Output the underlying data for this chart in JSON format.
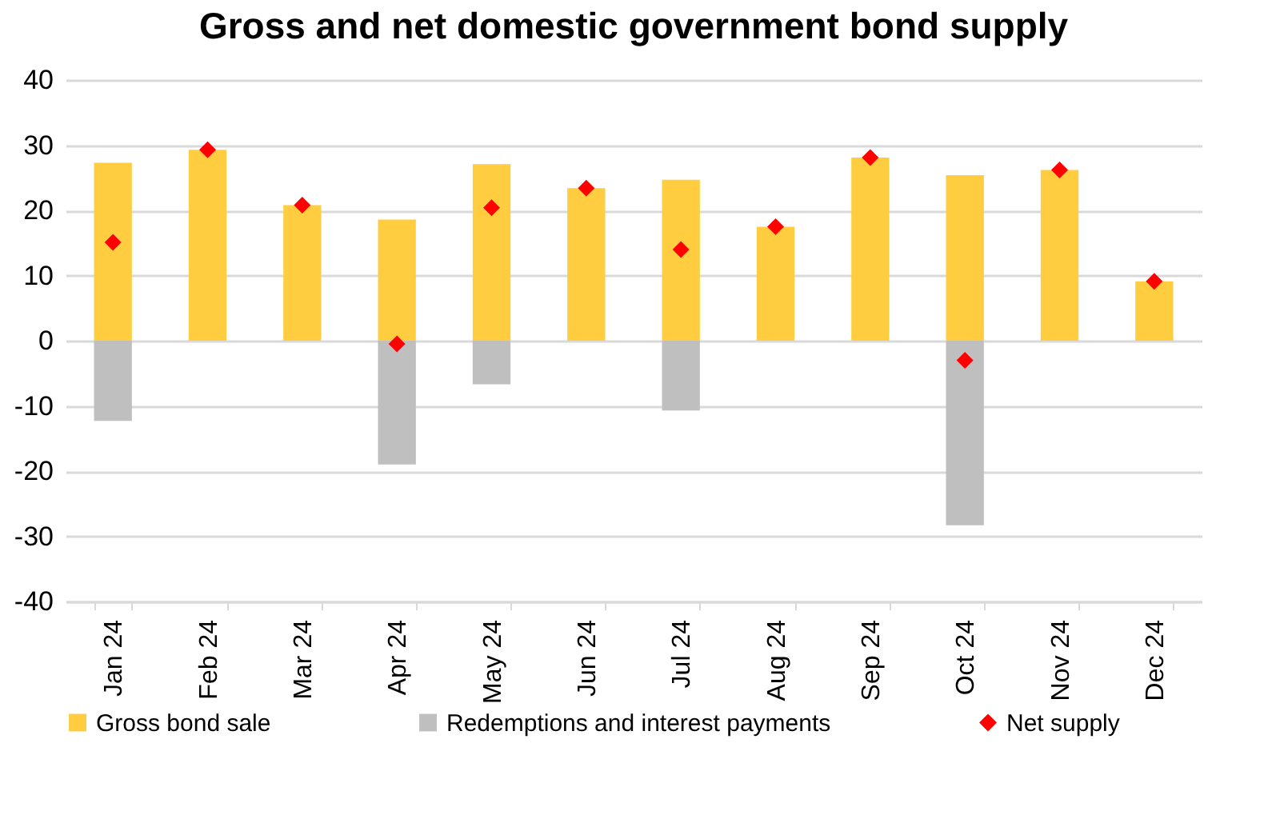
{
  "chart_data": {
    "type": "bar",
    "title": "Gross and net domestic government bond supply",
    "categories": [
      "Jan 24",
      "Feb 24",
      "Mar 24",
      "Apr 24",
      "May 24",
      "Jun 24",
      "Jul 24",
      "Aug 24",
      "Sep 24",
      "Oct 24",
      "Nov 24",
      "Dec 24"
    ],
    "series": [
      {
        "name": "Gross bond sale",
        "color": "#ffcd3f",
        "values": [
          27.3,
          29.3,
          20.8,
          18.6,
          27.1,
          23.4,
          24.7,
          17.5,
          28.1,
          25.4,
          26.2,
          9.1
        ]
      },
      {
        "name": "Redemptions and interest payments",
        "color": "#bfbfbf",
        "values": [
          -12.3,
          null,
          null,
          -19.0,
          -6.7,
          null,
          -10.7,
          null,
          null,
          -28.3,
          null,
          null
        ]
      },
      {
        "name": "Net supply",
        "type": "scatter",
        "color": "#ff0000",
        "marker": "diamond",
        "values": [
          15.1,
          29.3,
          20.8,
          -0.5,
          20.4,
          23.4,
          14.0,
          17.5,
          28.1,
          -3.0,
          26.2,
          9.1
        ]
      }
    ],
    "stacked": true,
    "ylim": [
      -40,
      40
    ],
    "yticks": [
      -40,
      -30,
      -20,
      -10,
      0,
      10,
      20,
      30,
      40
    ],
    "grid": "y",
    "legend": "bottom"
  }
}
